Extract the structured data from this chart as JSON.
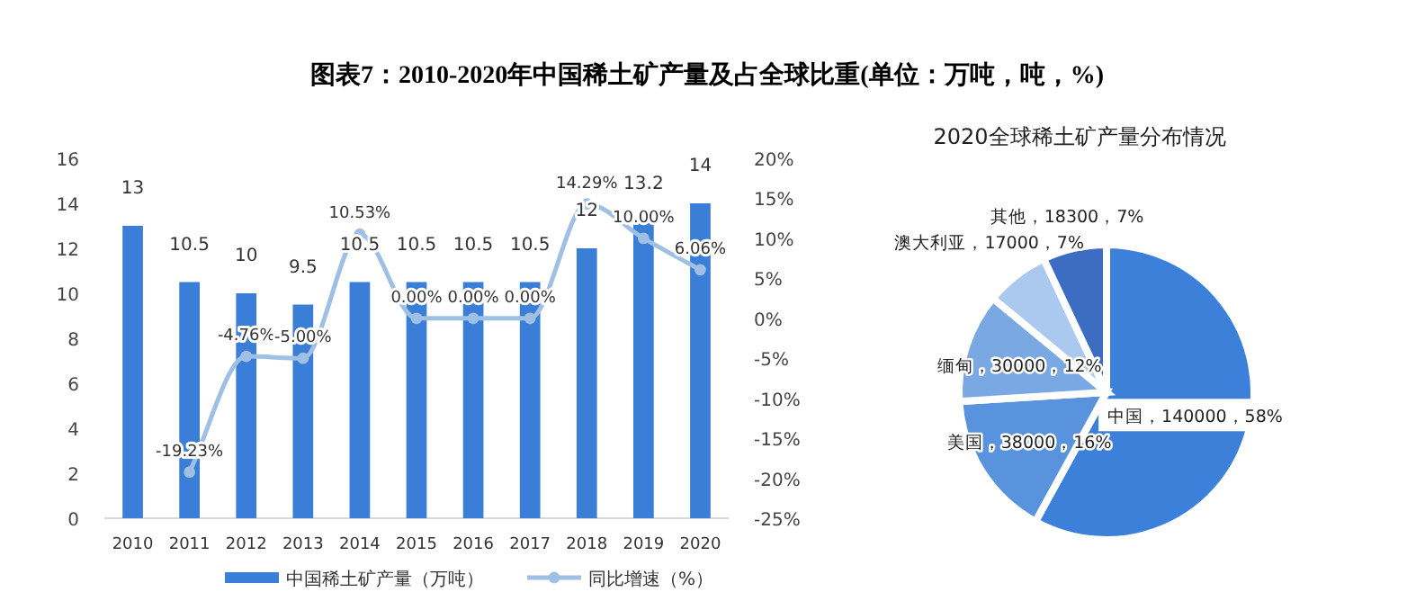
{
  "chart_data": [
    {
      "type": "bar",
      "title": "图表7：2010-2020年中国稀土矿产量及占全球比重(单位：万吨，吨，%)",
      "categories": [
        "2010",
        "2011",
        "2012",
        "2013",
        "2014",
        "2015",
        "2016",
        "2017",
        "2018",
        "2019",
        "2020"
      ],
      "series": [
        {
          "name": "中国稀土矿产量（万吨）",
          "type": "bar",
          "color": "#3a7ed8",
          "values": [
            13,
            10.5,
            10,
            9.5,
            10.5,
            10.5,
            10.5,
            10.5,
            12,
            13.2,
            14
          ],
          "value_labels": [
            "13",
            "10.5",
            "10",
            "9.5",
            "10.5",
            "10.5",
            "10.5",
            "10.5",
            "12",
            "13.2",
            "14"
          ]
        },
        {
          "name": "同比增速（%）",
          "type": "line",
          "axis": "y2",
          "color": "#9fc0e4",
          "marker": "circle",
          "values": [
            null,
            -19.23,
            -4.76,
            -5.0,
            10.53,
            0.0,
            0.0,
            0.0,
            14.29,
            10.0,
            6.06
          ],
          "value_labels": [
            null,
            "-19.23%",
            "-4.76%",
            "-5.00%",
            "10.53%",
            "0.00%",
            "0.00%",
            "0.00%",
            "14.29%",
            "10.00%",
            "6.06%"
          ]
        }
      ],
      "ylim": [
        0,
        16
      ],
      "yticks": [
        0,
        2,
        4,
        6,
        8,
        10,
        12,
        14,
        16
      ],
      "y2lim": [
        -25,
        20
      ],
      "y2ticks": [
        {
          "value": -25,
          "label": "-25%"
        },
        {
          "value": -20,
          "label": "-20%"
        },
        {
          "value": -15,
          "label": "-15%"
        },
        {
          "value": -10,
          "label": "-10%"
        },
        {
          "value": -5,
          "label": "-5%"
        },
        {
          "value": 0,
          "label": "0%"
        },
        {
          "value": 5,
          "label": "5%"
        },
        {
          "value": 10,
          "label": "10%"
        },
        {
          "value": 15,
          "label": "15%"
        },
        {
          "value": 20,
          "label": "20%"
        }
      ],
      "legend": "bottom",
      "grid": false
    },
    {
      "type": "pie",
      "title": "2020全球稀土矿产量分布情况",
      "categories": [
        "中国",
        "美国",
        "缅甸",
        "澳大利亚",
        "其他"
      ],
      "values": [
        58,
        16,
        12,
        7,
        7
      ],
      "colors": [
        "#3d80da",
        "#5a93dd",
        "#79a8e3",
        "#abc9ee",
        "#3c6dc2"
      ],
      "value_labels": [
        "，140000，58%",
        "，38000，16%",
        "，30000，12%",
        "，17000，7%",
        "，18300，7%"
      ]
    }
  ]
}
